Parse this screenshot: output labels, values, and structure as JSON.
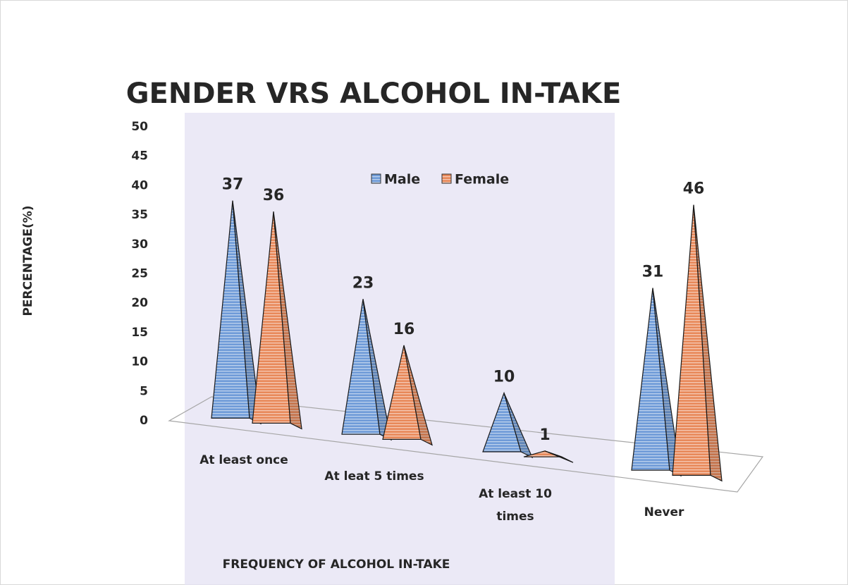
{
  "chart_data": {
    "type": "pyramid3d",
    "title": "GENDER VRS ALCOHOL IN-TAKE",
    "x_label": "FREQUENCY OF ALCOHOL IN-TAKE",
    "y_label": "PERCENTAGE(%)",
    "categories": [
      "At least once",
      "At leat 5 times",
      "At least 10 times",
      "Never"
    ],
    "series": [
      {
        "name": "Male",
        "color": "#6f9bd8",
        "values": [
          37,
          23,
          10,
          31
        ]
      },
      {
        "name": "Female",
        "color": "#e8895a",
        "values": [
          36,
          16,
          1,
          46
        ]
      }
    ],
    "ylim": [
      0,
      50
    ],
    "yticks": [
      0,
      5,
      10,
      15,
      20,
      25,
      30,
      35,
      40,
      45,
      50
    ],
    "legend": "top"
  }
}
